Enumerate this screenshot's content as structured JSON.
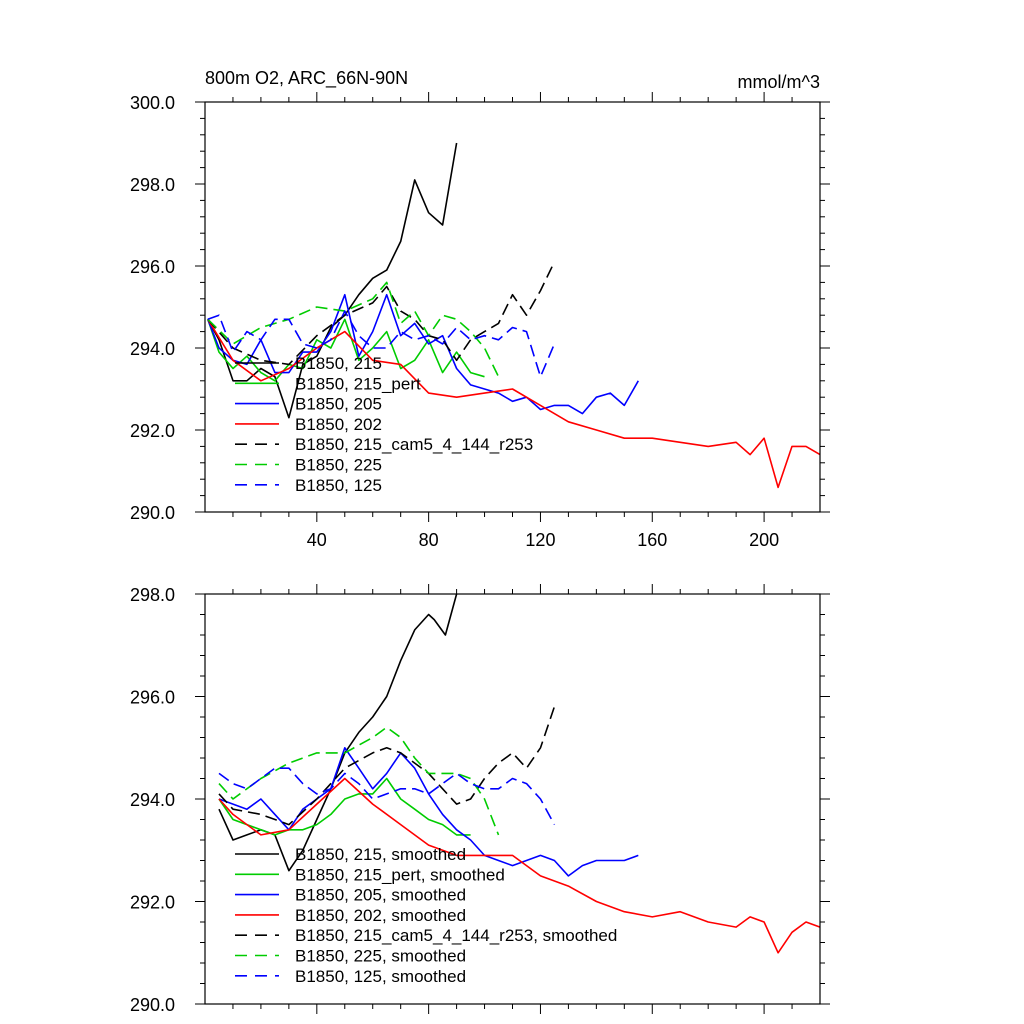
{
  "chart_data": [
    {
      "type": "line",
      "title": "800m O2, ARC_66N-90N",
      "units": "mmol/m^3",
      "xlabel": "",
      "ylabel": "",
      "xlim": [
        0,
        220
      ],
      "ylim": [
        290,
        300
      ],
      "xticks": [
        40,
        80,
        120,
        160,
        200
      ],
      "xticks_labels": [
        "40",
        "80",
        "120",
        "160",
        "200"
      ],
      "yticks": [
        290,
        292,
        294,
        296,
        298,
        300
      ],
      "yticks_labels": [
        "290.0",
        "292.0",
        "294.0",
        "296.0",
        "298.0",
        "300.0"
      ],
      "grid": false,
      "legend_position": "bottom-left",
      "series": [
        {
          "name": "B1850, 215",
          "color": "#000000",
          "dash": "solid",
          "x": [
            1,
            5,
            10,
            15,
            20,
            25,
            30,
            35,
            40,
            45,
            50,
            55,
            60,
            65,
            70,
            75,
            80,
            85,
            90
          ],
          "y": [
            294.7,
            294.2,
            293.2,
            293.2,
            293.5,
            293.3,
            292.3,
            293.6,
            293.8,
            294.5,
            294.8,
            295.3,
            295.7,
            295.9,
            296.6,
            298.1,
            297.3,
            297.0,
            299.0
          ]
        },
        {
          "name": "B1850, 215_pert",
          "color": "#00cc00",
          "dash": "solid",
          "x": [
            1,
            5,
            10,
            15,
            20,
            25,
            30,
            35,
            40,
            45,
            50,
            55,
            60,
            65,
            70,
            75,
            80,
            85,
            90,
            95,
            100
          ],
          "y": [
            294.7,
            293.9,
            293.5,
            293.8,
            293.4,
            293.2,
            293.6,
            293.5,
            294.2,
            294.0,
            294.7,
            293.7,
            294.0,
            294.4,
            293.5,
            293.7,
            294.2,
            293.4,
            293.9,
            293.4,
            293.3
          ]
        },
        {
          "name": "B1850, 205",
          "color": "#0000ff",
          "dash": "solid",
          "x": [
            1,
            5,
            10,
            15,
            20,
            25,
            30,
            35,
            40,
            45,
            50,
            55,
            60,
            65,
            70,
            75,
            80,
            85,
            90,
            95,
            100,
            105,
            110,
            115,
            120,
            125,
            130,
            135,
            140,
            145,
            150,
            155
          ],
          "y": [
            294.7,
            294.0,
            293.7,
            293.6,
            294.2,
            293.4,
            293.4,
            293.9,
            293.9,
            294.4,
            295.3,
            293.8,
            294.4,
            295.3,
            294.3,
            294.6,
            294.1,
            294.3,
            293.5,
            293.1,
            293.0,
            292.9,
            292.7,
            292.8,
            292.5,
            292.6,
            292.6,
            292.4,
            292.8,
            292.9,
            292.6,
            293.2
          ]
        },
        {
          "name": "B1850, 202",
          "color": "#ff0000",
          "dash": "solid",
          "x": [
            1,
            10,
            20,
            30,
            40,
            50,
            60,
            70,
            80,
            90,
            100,
            110,
            120,
            130,
            140,
            150,
            160,
            170,
            180,
            190,
            195,
            200,
            205,
            210,
            215,
            220
          ],
          "y": [
            294.7,
            293.7,
            293.2,
            293.5,
            294.0,
            294.4,
            293.7,
            293.6,
            292.9,
            292.8,
            292.9,
            293.0,
            292.6,
            292.2,
            292.0,
            291.8,
            291.8,
            291.7,
            291.6,
            291.7,
            291.4,
            291.8,
            290.6,
            291.6,
            291.6,
            291.4
          ]
        },
        {
          "name": "B1850, 215_cam5_4_144_r253",
          "color": "#000000",
          "dash": "dashed",
          "x": [
            1,
            10,
            20,
            30,
            40,
            50,
            60,
            65,
            70,
            75,
            80,
            85,
            90,
            95,
            100,
            105,
            110,
            115,
            120,
            125
          ],
          "y": [
            294.7,
            294.0,
            293.7,
            293.6,
            294.3,
            294.8,
            295.1,
            295.5,
            294.9,
            294.7,
            294.3,
            294.2,
            293.7,
            294.2,
            294.4,
            294.6,
            295.3,
            294.8,
            295.4,
            296.1
          ]
        },
        {
          "name": "B1850, 225",
          "color": "#00cc00",
          "dash": "dashed",
          "x": [
            1,
            10,
            20,
            30,
            40,
            50,
            60,
            65,
            70,
            75,
            80,
            85,
            90,
            95,
            100,
            105
          ],
          "y": [
            294.7,
            294.1,
            294.5,
            294.7,
            295.0,
            294.9,
            295.2,
            295.6,
            294.6,
            294.9,
            294.3,
            294.8,
            294.7,
            294.4,
            294.0,
            293.3
          ]
        },
        {
          "name": "B1850, 125",
          "color": "#0000ff",
          "dash": "dashed",
          "x": [
            1,
            5,
            10,
            15,
            20,
            25,
            30,
            35,
            40,
            45,
            50,
            55,
            60,
            65,
            70,
            75,
            80,
            85,
            90,
            95,
            100,
            105,
            110,
            115,
            120,
            125
          ],
          "y": [
            294.7,
            294.8,
            293.9,
            294.4,
            294.2,
            294.7,
            294.7,
            294.1,
            294.0,
            294.2,
            294.9,
            294.3,
            294.0,
            294.0,
            294.4,
            294.2,
            294.3,
            294.1,
            294.5,
            294.2,
            294.3,
            294.2,
            294.5,
            294.4,
            293.3,
            294.1
          ]
        }
      ]
    },
    {
      "type": "line",
      "title": "",
      "xlabel": "",
      "ylabel": "",
      "xlim": [
        0,
        220
      ],
      "ylim": [
        290,
        298
      ],
      "xticks": [
        40,
        80,
        120,
        160,
        200
      ],
      "yticks": [
        290,
        292,
        294,
        296,
        298
      ],
      "yticks_labels": [
        "290.0",
        "292.0",
        "294.0",
        "296.0",
        "298.0"
      ],
      "grid": false,
      "legend_position": "bottom-left",
      "series": [
        {
          "name": "B1850, 215, smoothed",
          "color": "#000000",
          "dash": "solid",
          "x": [
            5,
            10,
            15,
            20,
            25,
            30,
            35,
            40,
            45,
            50,
            55,
            60,
            65,
            70,
            75,
            80,
            82,
            86,
            90
          ],
          "y": [
            293.8,
            293.2,
            293.3,
            293.4,
            293.3,
            292.6,
            293.0,
            293.6,
            294.2,
            294.9,
            295.3,
            295.6,
            296.0,
            296.7,
            297.3,
            297.6,
            297.5,
            297.2,
            298.0
          ]
        },
        {
          "name": "B1850, 215_pert, smoothed",
          "color": "#00cc00",
          "dash": "solid",
          "x": [
            5,
            10,
            15,
            20,
            25,
            30,
            35,
            40,
            45,
            50,
            55,
            60,
            65,
            70,
            75,
            80,
            85,
            90,
            95
          ],
          "y": [
            294.0,
            293.6,
            293.5,
            293.4,
            293.3,
            293.4,
            293.4,
            293.5,
            293.7,
            294.0,
            294.1,
            294.1,
            294.4,
            294.0,
            293.8,
            293.6,
            293.5,
            293.3,
            293.3
          ]
        },
        {
          "name": "B1850, 205, smoothed",
          "color": "#0000ff",
          "dash": "solid",
          "x": [
            5,
            10,
            15,
            20,
            25,
            30,
            35,
            40,
            45,
            50,
            55,
            60,
            65,
            70,
            75,
            80,
            85,
            90,
            95,
            100,
            105,
            110,
            115,
            120,
            125,
            130,
            135,
            140,
            145,
            150,
            155
          ],
          "y": [
            294.0,
            293.9,
            293.8,
            294.0,
            293.7,
            293.4,
            293.8,
            294.0,
            294.2,
            295.0,
            294.6,
            294.2,
            294.5,
            294.9,
            294.6,
            294.1,
            293.7,
            293.4,
            293.2,
            292.9,
            292.8,
            292.7,
            292.8,
            292.9,
            292.8,
            292.5,
            292.7,
            292.8,
            292.8,
            292.8,
            292.9
          ]
        },
        {
          "name": "B1850, 202, smoothed",
          "color": "#ff0000",
          "dash": "solid",
          "x": [
            5,
            10,
            20,
            30,
            40,
            50,
            60,
            70,
            80,
            90,
            100,
            110,
            120,
            130,
            140,
            150,
            160,
            170,
            180,
            190,
            195,
            200,
            205,
            210,
            215,
            220
          ],
          "y": [
            294.0,
            293.7,
            293.3,
            293.4,
            293.9,
            294.4,
            293.9,
            293.5,
            293.1,
            292.9,
            292.9,
            292.9,
            292.5,
            292.3,
            292.0,
            291.8,
            291.7,
            291.8,
            291.6,
            291.5,
            291.7,
            291.6,
            291.0,
            291.4,
            291.6,
            291.5
          ]
        },
        {
          "name": "B1850, 215_cam5_4_144_r253, smoothed",
          "color": "#000000",
          "dash": "dashed",
          "x": [
            5,
            10,
            20,
            30,
            40,
            50,
            60,
            65,
            70,
            75,
            80,
            85,
            90,
            95,
            100,
            105,
            110,
            115,
            120,
            125
          ],
          "y": [
            294.1,
            293.8,
            293.7,
            293.5,
            294.0,
            294.6,
            294.9,
            295.0,
            294.9,
            294.7,
            294.5,
            294.2,
            293.9,
            294.0,
            294.4,
            294.7,
            294.9,
            294.6,
            295.0,
            295.8
          ]
        },
        {
          "name": "B1850, 225, smoothed",
          "color": "#00cc00",
          "dash": "dashed",
          "x": [
            5,
            10,
            20,
            30,
            40,
            50,
            60,
            65,
            70,
            75,
            80,
            85,
            90,
            95,
            100,
            105
          ],
          "y": [
            294.3,
            294.0,
            294.4,
            294.7,
            294.9,
            294.9,
            295.2,
            295.4,
            295.2,
            294.8,
            294.5,
            294.5,
            294.5,
            294.4,
            294.0,
            293.3
          ]
        },
        {
          "name": "B1850, 125, smoothed",
          "color": "#0000ff",
          "dash": "dashed",
          "x": [
            5,
            10,
            15,
            20,
            25,
            30,
            35,
            40,
            45,
            50,
            55,
            60,
            65,
            70,
            75,
            80,
            85,
            90,
            95,
            100,
            105,
            110,
            115,
            120,
            125
          ],
          "y": [
            294.5,
            294.3,
            294.2,
            294.4,
            294.6,
            294.6,
            294.3,
            294.1,
            294.2,
            294.5,
            294.3,
            294.0,
            294.1,
            294.2,
            294.2,
            294.1,
            294.3,
            294.5,
            294.3,
            294.2,
            294.2,
            294.4,
            294.3,
            294.0,
            293.5
          ]
        }
      ]
    }
  ]
}
